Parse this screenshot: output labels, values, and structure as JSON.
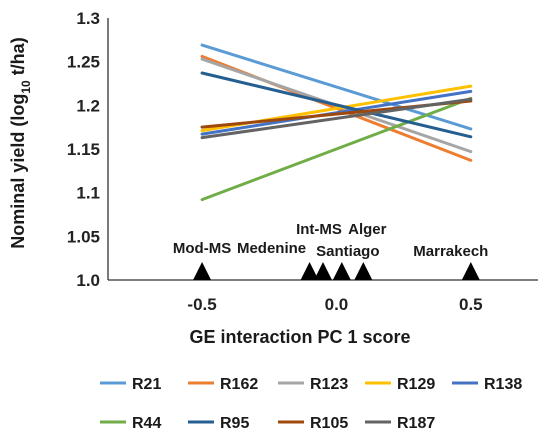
{
  "chart_data": {
    "type": "line",
    "ylabel_main": "Nominal yield (log",
    "ylabel_sub": "10",
    "ylabel_tail": " t/ha)",
    "xlabel": "GE interaction PC 1 score",
    "xlim": [
      -0.85,
      0.75
    ],
    "ylim": [
      1.0,
      1.3
    ],
    "xticks": [
      {
        "value": -0.5,
        "label": "-0.5"
      },
      {
        "value": 0.0,
        "label": "0.0"
      },
      {
        "value": 0.5,
        "label": "0.5"
      }
    ],
    "yticks": [
      {
        "value": 1.0,
        "label": "1.0"
      },
      {
        "value": 1.05,
        "label": "1.05"
      },
      {
        "value": 1.1,
        "label": "1.1"
      },
      {
        "value": 1.15,
        "label": "1.15"
      },
      {
        "value": 1.2,
        "label": "1.2"
      },
      {
        "value": 1.25,
        "label": "1.25"
      },
      {
        "value": 1.3,
        "label": "1.3"
      }
    ],
    "grid": false,
    "legend_position": "bottom",
    "series": [
      {
        "name": "R21",
        "color": "#5b9bd5",
        "x": [
          -0.5,
          0.5
        ],
        "y": [
          1.269,
          1.173
        ]
      },
      {
        "name": "R162",
        "color": "#ed7d31",
        "x": [
          -0.5,
          0.5
        ],
        "y": [
          1.256,
          1.137
        ]
      },
      {
        "name": "R123",
        "color": "#a5a5a5",
        "x": [
          -0.5,
          0.5
        ],
        "y": [
          1.253,
          1.147
        ]
      },
      {
        "name": "R129",
        "color": "#ffc000",
        "x": [
          -0.5,
          0.5
        ],
        "y": [
          1.171,
          1.222
        ]
      },
      {
        "name": "R138",
        "color": "#4472c4",
        "x": [
          -0.5,
          0.5
        ],
        "y": [
          1.167,
          1.216
        ]
      },
      {
        "name": "R44",
        "color": "#70ad47",
        "x": [
          -0.5,
          0.5
        ],
        "y": [
          1.092,
          1.208
        ]
      },
      {
        "name": "R95",
        "color": "#255e91",
        "x": [
          -0.5,
          0.5
        ],
        "y": [
          1.237,
          1.164
        ]
      },
      {
        "name": "R105",
        "color": "#9e480e",
        "x": [
          -0.5,
          0.5
        ],
        "y": [
          1.175,
          1.205
        ]
      },
      {
        "name": "R187",
        "color": "#636363",
        "x": [
          -0.5,
          0.5
        ],
        "y": [
          1.163,
          1.207
        ]
      }
    ],
    "environments": [
      {
        "name": "Mod-MS",
        "x": -0.5
      },
      {
        "name": "Medenine",
        "x": -0.1
      },
      {
        "name": "Int-MS",
        "x": -0.05
      },
      {
        "name": "Santiago",
        "x": 0.02
      },
      {
        "name": "Alger",
        "x": 0.1
      },
      {
        "name": "Marrakech",
        "x": 0.5
      }
    ]
  }
}
